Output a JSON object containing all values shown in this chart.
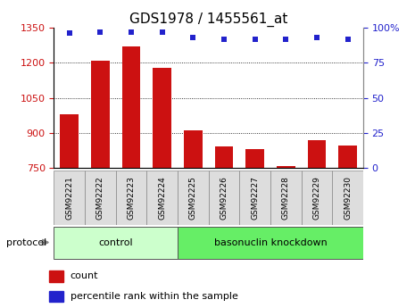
{
  "title": "GDS1978 / 1455561_at",
  "samples": [
    "GSM92221",
    "GSM92222",
    "GSM92223",
    "GSM92224",
    "GSM92225",
    "GSM92226",
    "GSM92227",
    "GSM92228",
    "GSM92229",
    "GSM92230"
  ],
  "counts": [
    980,
    1210,
    1270,
    1180,
    910,
    840,
    830,
    757,
    870,
    845
  ],
  "percentile_ranks": [
    96,
    97,
    97,
    97,
    93,
    92,
    92,
    92,
    93,
    92
  ],
  "bar_color": "#cc1111",
  "dot_color": "#2222cc",
  "ylim_left": [
    750,
    1350
  ],
  "ylim_right": [
    0,
    100
  ],
  "yticks_left": [
    750,
    900,
    1050,
    1200,
    1350
  ],
  "yticks_right": [
    0,
    25,
    50,
    75,
    100
  ],
  "ytick_right_labels": [
    "0",
    "25",
    "50",
    "75",
    "100%"
  ],
  "groups": [
    {
      "label": "control",
      "start": 0,
      "end": 4
    },
    {
      "label": "basonuclin knockdown",
      "start": 4,
      "end": 10
    }
  ],
  "group_colors": [
    "#ccffcc",
    "#66ee66"
  ],
  "protocol_label": "protocol",
  "legend_items": [
    {
      "label": "count",
      "color": "#cc1111"
    },
    {
      "label": "percentile rank within the sample",
      "color": "#2222cc"
    }
  ],
  "tick_label_color_left": "#cc1111",
  "tick_label_color_right": "#2222cc",
  "title_fontsize": 11,
  "ticklabel_fontsize": 8,
  "bar_width": 0.6
}
